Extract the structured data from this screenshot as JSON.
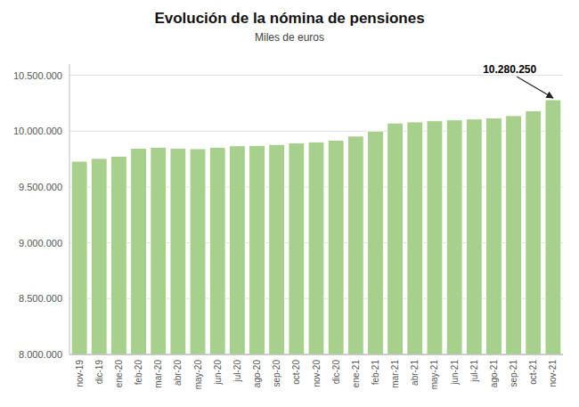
{
  "chart_data": {
    "type": "bar",
    "title": "Evolución de la nómina de pensiones",
    "subtitle": "Miles de euros",
    "categories": [
      "nov-19",
      "dic-19",
      "ene-20",
      "feb-20",
      "mar-20",
      "abr-20",
      "may-20",
      "jun-20",
      "jul-20",
      "ago-20",
      "sep-20",
      "oct-20",
      "nov-20",
      "dic-20",
      "ene-21",
      "feb-21",
      "mar-21",
      "abr-21",
      "may-21",
      "jun-21",
      "jul-21",
      "ago-21",
      "sep-21",
      "oct-21",
      "nov-21"
    ],
    "values": [
      9730000,
      9755000,
      9775000,
      9845000,
      9855000,
      9845000,
      9842000,
      9855000,
      9868000,
      9872000,
      9880000,
      9893000,
      9903000,
      9918000,
      9955000,
      10000000,
      10072000,
      10082000,
      10092000,
      10100000,
      10108000,
      10118000,
      10138000,
      10182000,
      10280250
    ],
    "color": "#a8d08d",
    "ylim": [
      8000000,
      10600000
    ],
    "yticks": [
      {
        "value": 8000000,
        "label": "8.000.000"
      },
      {
        "value": 8500000,
        "label": "8.500.000"
      },
      {
        "value": 9000000,
        "label": "9.000.000"
      },
      {
        "value": 9500000,
        "label": "9.500.000"
      },
      {
        "value": 10000000,
        "label": "10.000.000"
      },
      {
        "value": 10500000,
        "label": "10.500.000"
      }
    ],
    "grid": true,
    "annotations": [
      {
        "x": "nov-21",
        "y": 10280250,
        "text": "10.280.250"
      }
    ]
  }
}
